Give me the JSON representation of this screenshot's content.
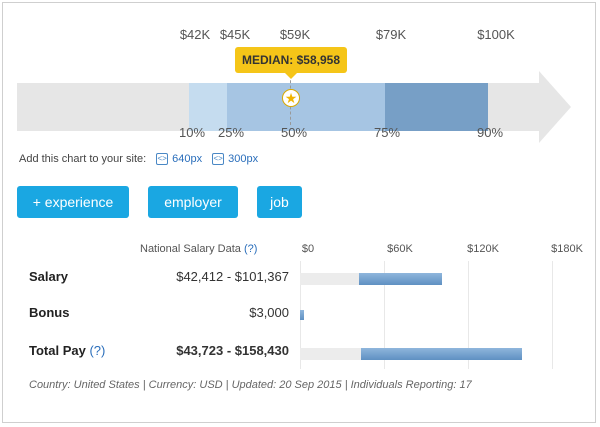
{
  "percentile_chart": {
    "top_labels": [
      "$42K",
      "$45K",
      "$59K",
      "$79K",
      "$100K"
    ],
    "bottom_labels": [
      "10%",
      "25%",
      "50%",
      "75%",
      "90%"
    ],
    "median_label": "MEDIAN: $58,958",
    "colors": {
      "track": "#e6e6e6",
      "p10_25": "#c5dcef",
      "p25_50": "#a6c5e3",
      "p50_75": "#a6c5e3",
      "p75_90": "#779fc6",
      "median_tag": "#f5c518"
    }
  },
  "embed": {
    "text": "Add this chart to your site:",
    "link_640": "640px",
    "link_300": "300px"
  },
  "buttons": {
    "experience": "+ experience",
    "employer": "employer",
    "job": "job"
  },
  "salary_table": {
    "header": "National Salary Data",
    "help_mark": "(?)",
    "axis_ticks": [
      "$0",
      "$60K",
      "$120K",
      "$180K"
    ],
    "rows": [
      {
        "label": "Salary",
        "value": "$42,412 - $101,367"
      },
      {
        "label": "Bonus",
        "value": "$3,000"
      },
      {
        "label": "Total Pay",
        "help": "(?)",
        "value": "$43,723 - $158,430"
      }
    ]
  },
  "footer": "Country: United States | Currency: USD | Updated: 20 Sep 2015 | Individuals Reporting: 17",
  "chart_data": {
    "type": "bar",
    "categories": [
      "Salary",
      "Bonus",
      "Total Pay"
    ],
    "ranges": [
      [
        42412,
        101367
      ],
      [
        0,
        3000
      ],
      [
        43723,
        158430
      ]
    ],
    "xlim": [
      0,
      180000
    ],
    "ticks": [
      "$0",
      "$60K",
      "$120K",
      "$180K"
    ],
    "grid": true
  }
}
